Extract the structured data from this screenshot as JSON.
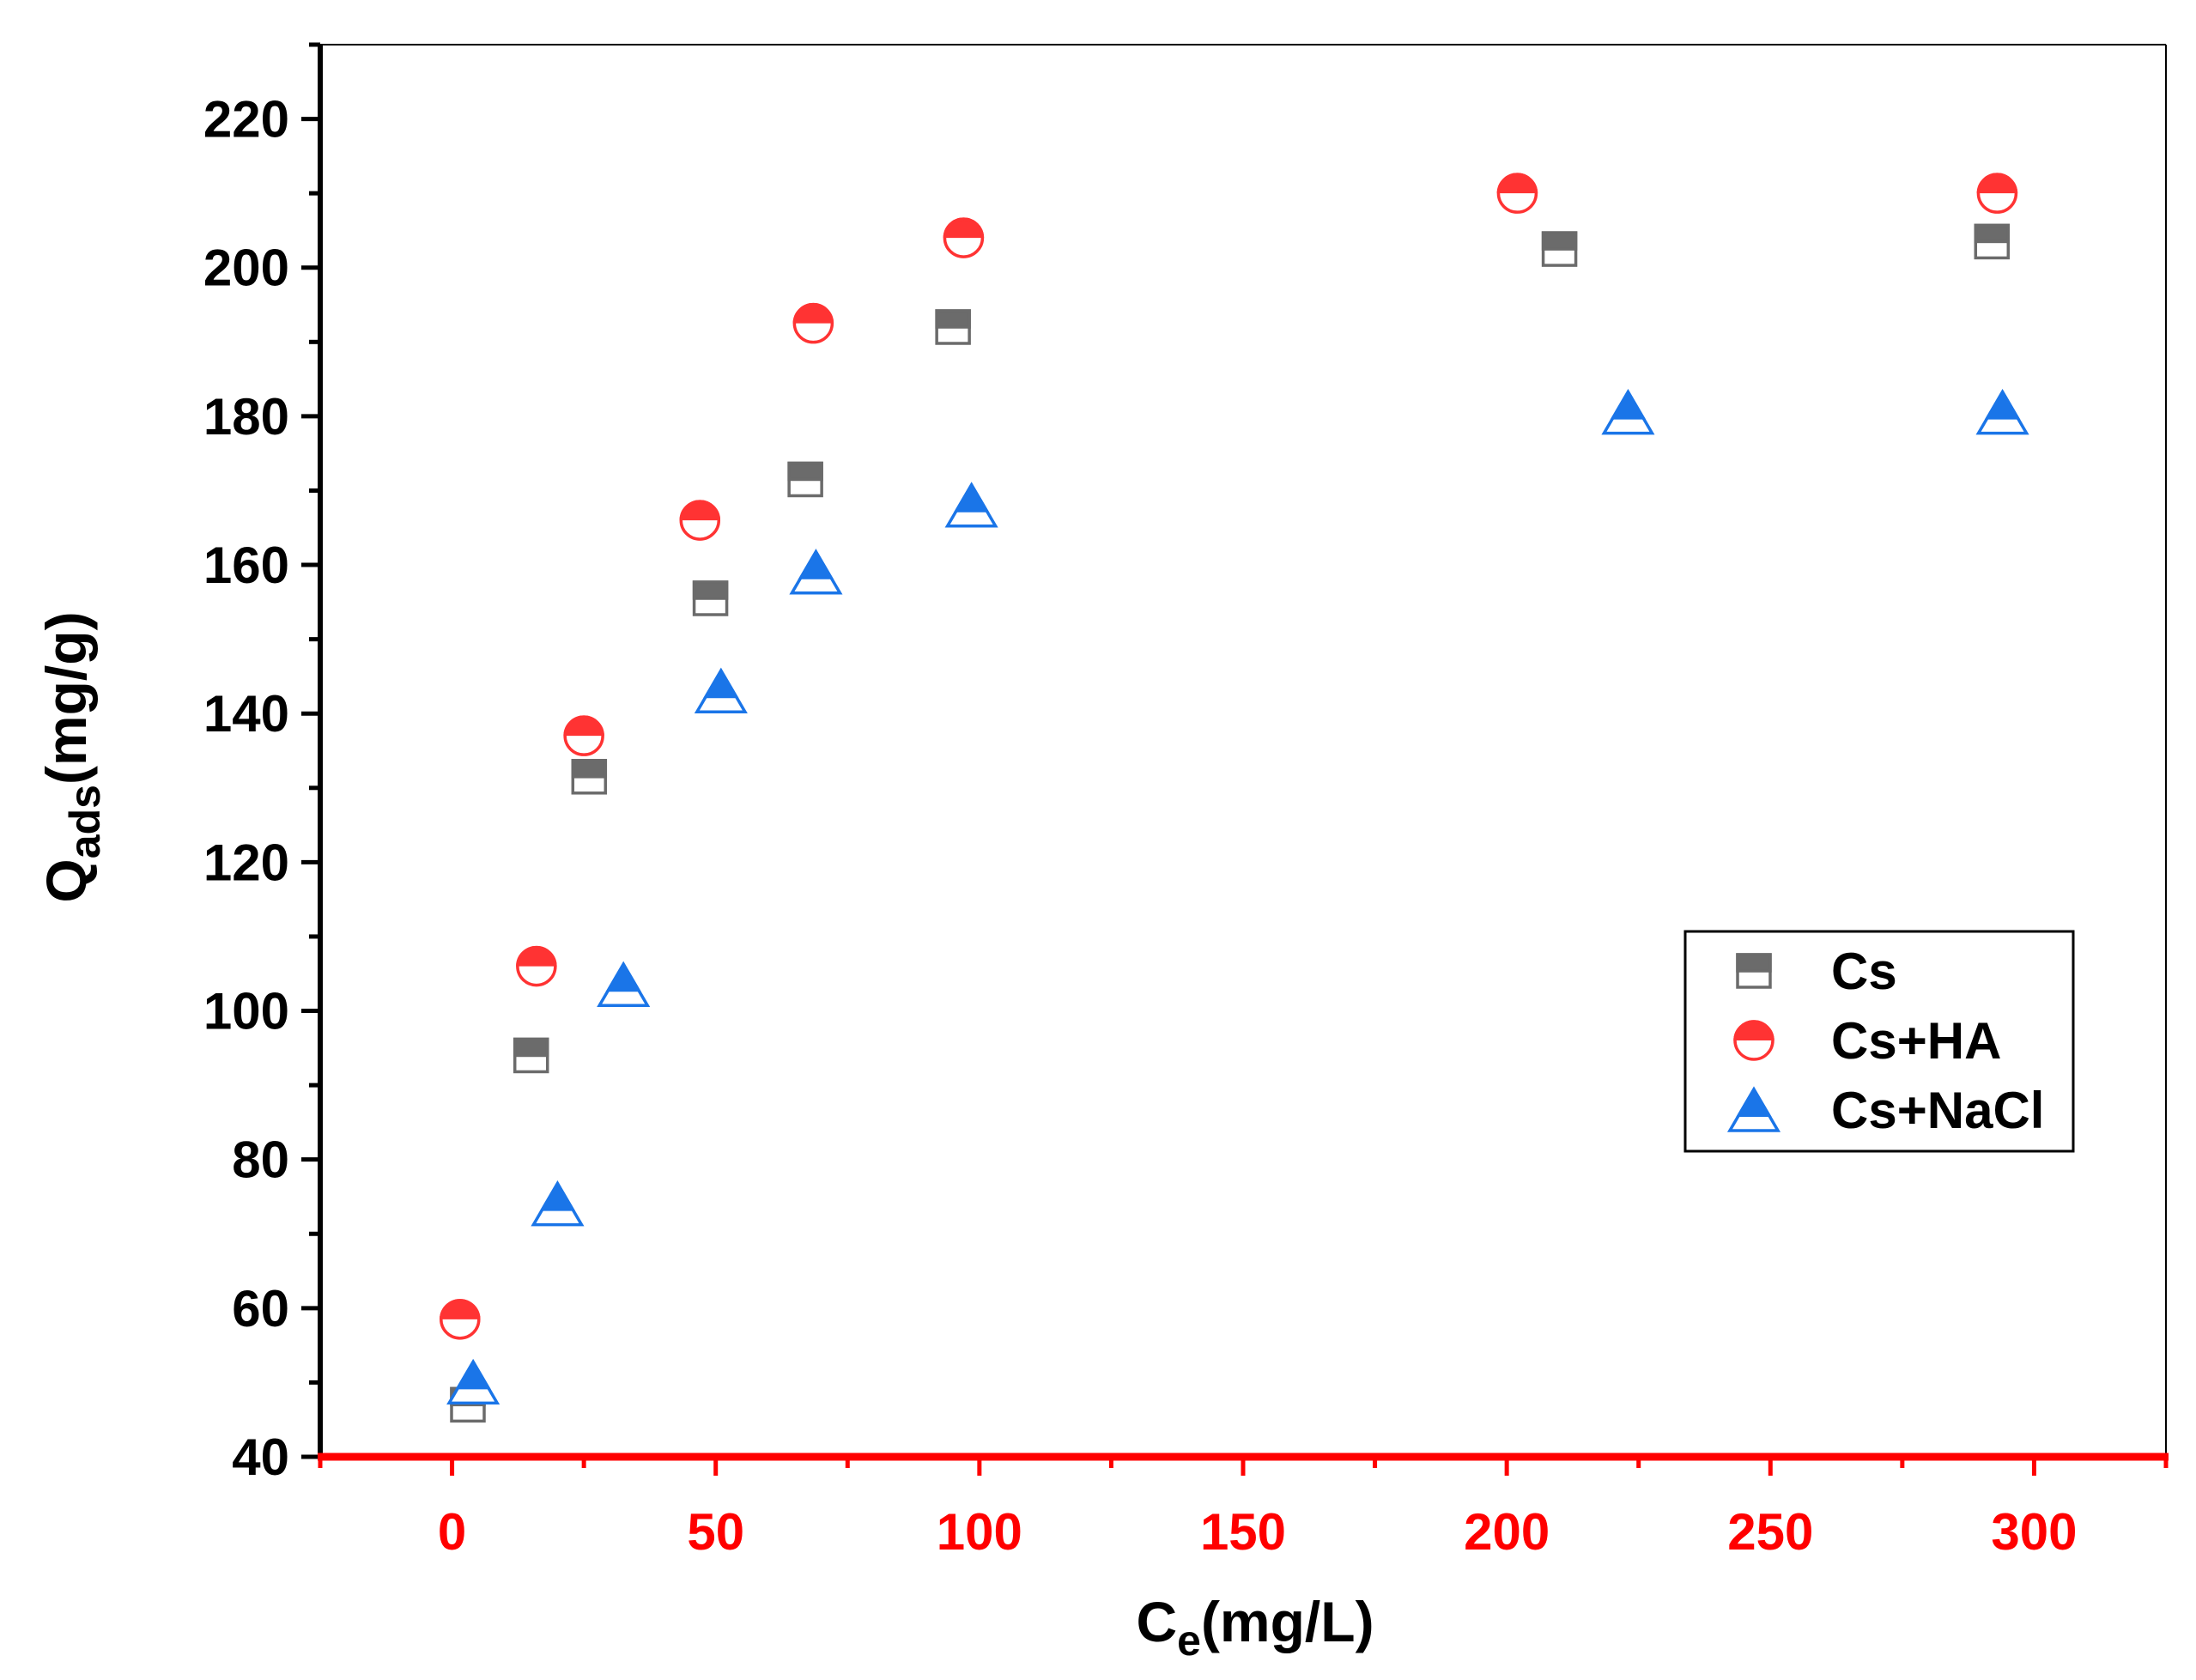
{
  "chart_data": {
    "type": "scatter",
    "title": "",
    "xlabel": {
      "main": "C",
      "sub": "e",
      "rest": "(mg/L)"
    },
    "ylabel": {
      "main": "Q",
      "sub": "ads",
      "rest": "(mg/g)"
    },
    "xlim": [
      -25,
      325
    ],
    "ylim": [
      40,
      230
    ],
    "x_ticks": [
      0,
      50,
      100,
      150,
      200,
      250,
      300
    ],
    "x_tick_labels": [
      "0",
      "50",
      "100",
      "150",
      "200",
      "250",
      "300"
    ],
    "y_ticks": [
      40,
      60,
      80,
      100,
      120,
      140,
      160,
      180,
      200,
      220
    ],
    "y_tick_labels": [
      "40",
      "60",
      "80",
      "100",
      "120",
      "140",
      "160",
      "180",
      "200",
      "220"
    ],
    "x_axis_color": "#ff0000",
    "y_axis_color": "#000000",
    "legend_position": "right-middle",
    "series": [
      {
        "name": "Cs",
        "marker": "square",
        "color": "#6b6b6b",
        "points": [
          [
            3,
            47
          ],
          [
            15,
            94
          ],
          [
            26,
            131.5
          ],
          [
            49,
            155.5
          ],
          [
            67,
            171.5
          ],
          [
            95,
            192
          ],
          [
            210,
            202.5
          ],
          [
            292,
            203.5
          ]
        ]
      },
      {
        "name": "Cs+HA",
        "marker": "circle",
        "color": "#ff3333",
        "points": [
          [
            1.5,
            58.5
          ],
          [
            16,
            106
          ],
          [
            25,
            137
          ],
          [
            47,
            166
          ],
          [
            68.5,
            192.5
          ],
          [
            97,
            204
          ],
          [
            202,
            210
          ],
          [
            293,
            210
          ]
        ]
      },
      {
        "name": "Cs+NaCl",
        "marker": "triangle",
        "color": "#1a75e8",
        "points": [
          [
            4,
            50
          ],
          [
            20,
            74
          ],
          [
            32.5,
            103.5
          ],
          [
            51,
            143
          ],
          [
            69,
            159
          ],
          [
            98.5,
            168
          ],
          [
            223,
            180.5
          ],
          [
            294,
            180.5
          ]
        ]
      }
    ]
  }
}
